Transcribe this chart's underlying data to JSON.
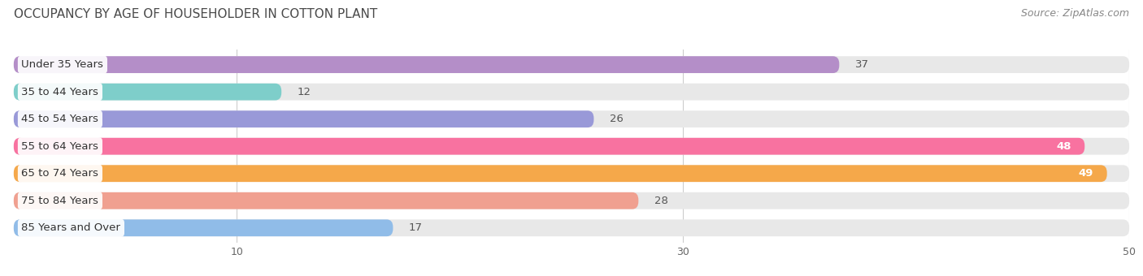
{
  "title": "OCCUPANCY BY AGE OF HOUSEHOLDER IN COTTON PLANT",
  "source": "Source: ZipAtlas.com",
  "categories": [
    "Under 35 Years",
    "35 to 44 Years",
    "45 to 54 Years",
    "55 to 64 Years",
    "65 to 74 Years",
    "75 to 84 Years",
    "85 Years and Over"
  ],
  "values": [
    37,
    12,
    26,
    48,
    49,
    28,
    17
  ],
  "bar_colors": [
    "#b48ec8",
    "#7ececa",
    "#9999d8",
    "#f872a0",
    "#f5a84a",
    "#f0a090",
    "#90bce8"
  ],
  "xlim": [
    0,
    50
  ],
  "background_color": "#ffffff",
  "bar_bg_color": "#e8e8e8",
  "title_fontsize": 11,
  "title_color": "#4a4a4a",
  "label_fontsize": 9.5,
  "value_fontsize": 9.5,
  "source_fontsize": 9,
  "value_inside_threshold": 45
}
